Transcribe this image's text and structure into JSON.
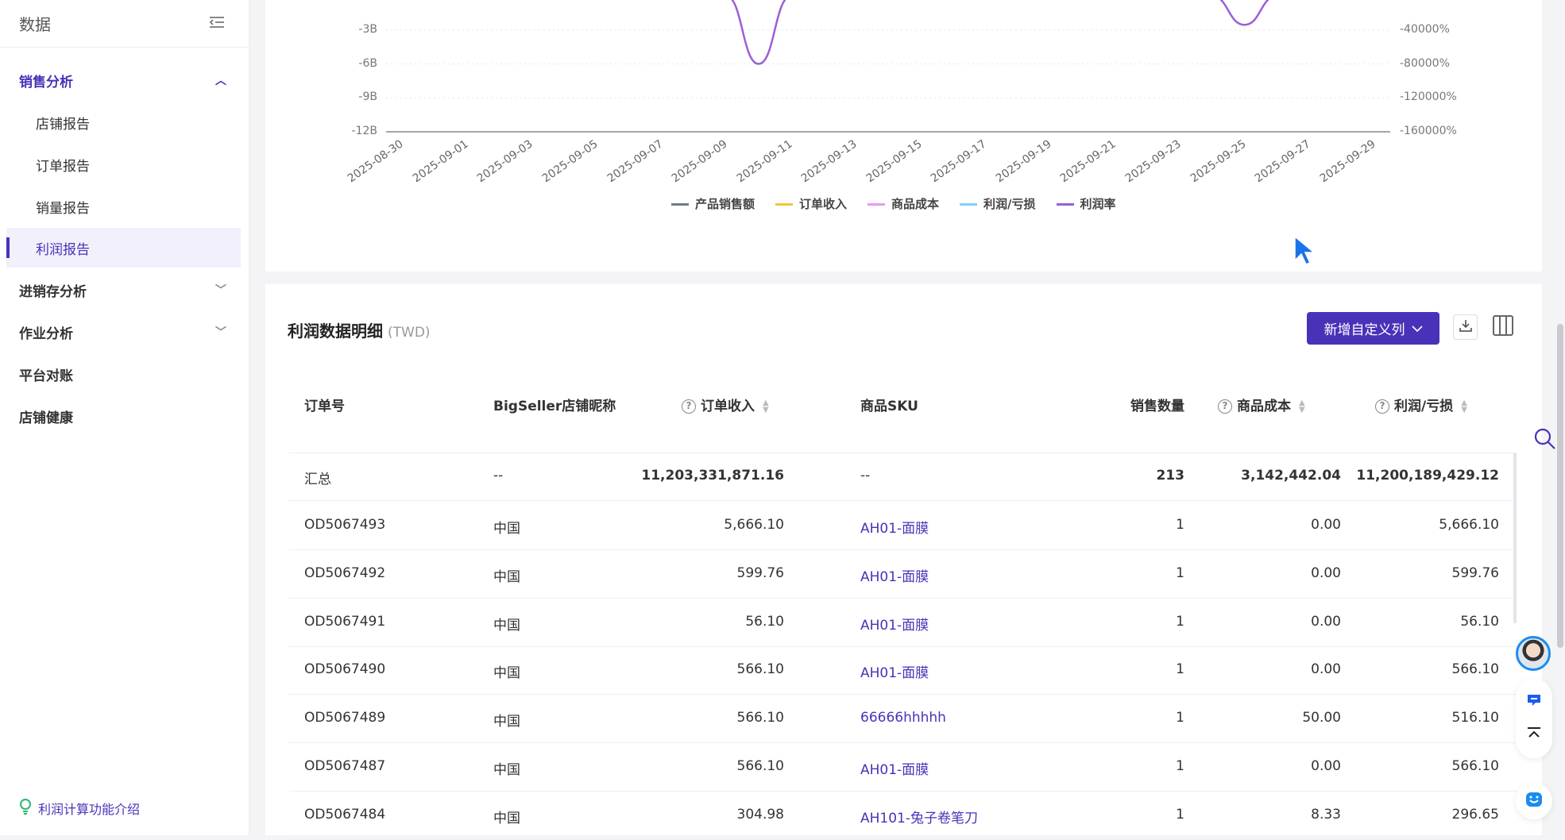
{
  "sidebar": {
    "title": "数据",
    "items": [
      {
        "label": "销售分析",
        "state": "expanded"
      },
      {
        "label": "店铺报告"
      },
      {
        "label": "订单报告"
      },
      {
        "label": "销量报告"
      },
      {
        "label": "利润报告",
        "state": "active"
      },
      {
        "label": "进销存分析",
        "state": "collapsed"
      },
      {
        "label": "作业分析",
        "state": "collapsed"
      },
      {
        "label": "平台对账"
      },
      {
        "label": "店铺健康"
      }
    ],
    "footer_link": "利润计算功能介绍"
  },
  "chart_data": {
    "type": "line",
    "x": [
      "2025-08-30",
      "2025-08-31",
      "2025-09-01",
      "2025-09-02",
      "2025-09-03",
      "2025-09-04",
      "2025-09-05",
      "2025-09-06",
      "2025-09-07",
      "2025-09-08",
      "2025-09-09",
      "2025-09-10",
      "2025-09-11",
      "2025-09-12",
      "2025-09-13",
      "2025-09-14",
      "2025-09-15",
      "2025-09-16",
      "2025-09-17",
      "2025-09-18",
      "2025-09-19",
      "2025-09-20",
      "2025-09-21",
      "2025-09-22",
      "2025-09-23",
      "2025-09-24",
      "2025-09-25",
      "2025-09-26",
      "2025-09-27",
      "2025-09-28",
      "2025-09-29"
    ],
    "x_tick_labels": [
      "2025-08-30",
      "2025-09-01",
      "2025-09-03",
      "2025-09-05",
      "2025-09-07",
      "2025-09-09",
      "2025-09-11",
      "2025-09-13",
      "2025-09-15",
      "2025-09-17",
      "2025-09-19",
      "2025-09-21",
      "2025-09-23",
      "2025-09-25",
      "2025-09-27",
      "2025-09-29"
    ],
    "y_left_ticks": [
      "-3B",
      "-6B",
      "-9B",
      "-12B"
    ],
    "y_right_ticks": [
      "-40000%",
      "-80000%",
      "-120000%",
      "-160000%"
    ],
    "y_left_range": [
      -12000000000,
      0
    ],
    "y_right_range": [
      -160000,
      0
    ],
    "grid": true,
    "legend_position": "bottom",
    "series": [
      {
        "name": "产品销售额",
        "color": "#6e7b8b",
        "axis": "left"
      },
      {
        "name": "订单收入",
        "color": "#f5c342",
        "axis": "left"
      },
      {
        "name": "商品成本",
        "color": "#e59cf0",
        "axis": "left"
      },
      {
        "name": "利润/亏损",
        "color": "#7fd3f7",
        "axis": "left"
      },
      {
        "name": "利润率",
        "color": "#9b5fd6",
        "axis": "right",
        "values": [
          0,
          0,
          0,
          0,
          0,
          0,
          0,
          0,
          0,
          0,
          0,
          -80000,
          0,
          0,
          0,
          0,
          0,
          0,
          0,
          0,
          0,
          0,
          0,
          0,
          0,
          0,
          -34000,
          0,
          0,
          0,
          0
        ]
      }
    ]
  },
  "table": {
    "title": "利润数据明细",
    "currency": "(TWD)",
    "add_column_button": "新增自定义列",
    "columns": [
      "订单号",
      "BigSeller店铺昵称",
      "订单收入",
      "商品SKU",
      "销售数量",
      "商品成本",
      "利润/亏损"
    ],
    "summary": {
      "label": "汇总",
      "shop": "--",
      "income": "11,203,331,871.16",
      "sku": "--",
      "qty": "213",
      "cost": "3,142,442.04",
      "profit": "11,200,189,429.12"
    },
    "rows": [
      {
        "order": "OD5067493",
        "shop": "中国",
        "income": "5,666.10",
        "sku": "AH01-面膜",
        "qty": "1",
        "cost": "0.00",
        "profit": "5,666.10"
      },
      {
        "order": "OD5067492",
        "shop": "中国",
        "income": "599.76",
        "sku": "AH01-面膜",
        "qty": "1",
        "cost": "0.00",
        "profit": "599.76"
      },
      {
        "order": "OD5067491",
        "shop": "中国",
        "income": "56.10",
        "sku": "AH01-面膜",
        "qty": "1",
        "cost": "0.00",
        "profit": "56.10"
      },
      {
        "order": "OD5067490",
        "shop": "中国",
        "income": "566.10",
        "sku": "AH01-面膜",
        "qty": "1",
        "cost": "0.00",
        "profit": "566.10"
      },
      {
        "order": "OD5067489",
        "shop": "中国",
        "income": "566.10",
        "sku": "66666hhhhh",
        "qty": "1",
        "cost": "50.00",
        "profit": "516.10"
      },
      {
        "order": "OD5067487",
        "shop": "中国",
        "income": "566.10",
        "sku": "AH01-面膜",
        "qty": "1",
        "cost": "0.00",
        "profit": "566.10"
      },
      {
        "order": "OD5067484",
        "shop": "中国",
        "income": "304.98",
        "sku": "AH101-兔子卷笔刀",
        "qty": "1",
        "cost": "8.33",
        "profit": "296.65"
      }
    ]
  },
  "colors": {
    "accent": "#4a32b8",
    "background": "#f4f4f7"
  }
}
